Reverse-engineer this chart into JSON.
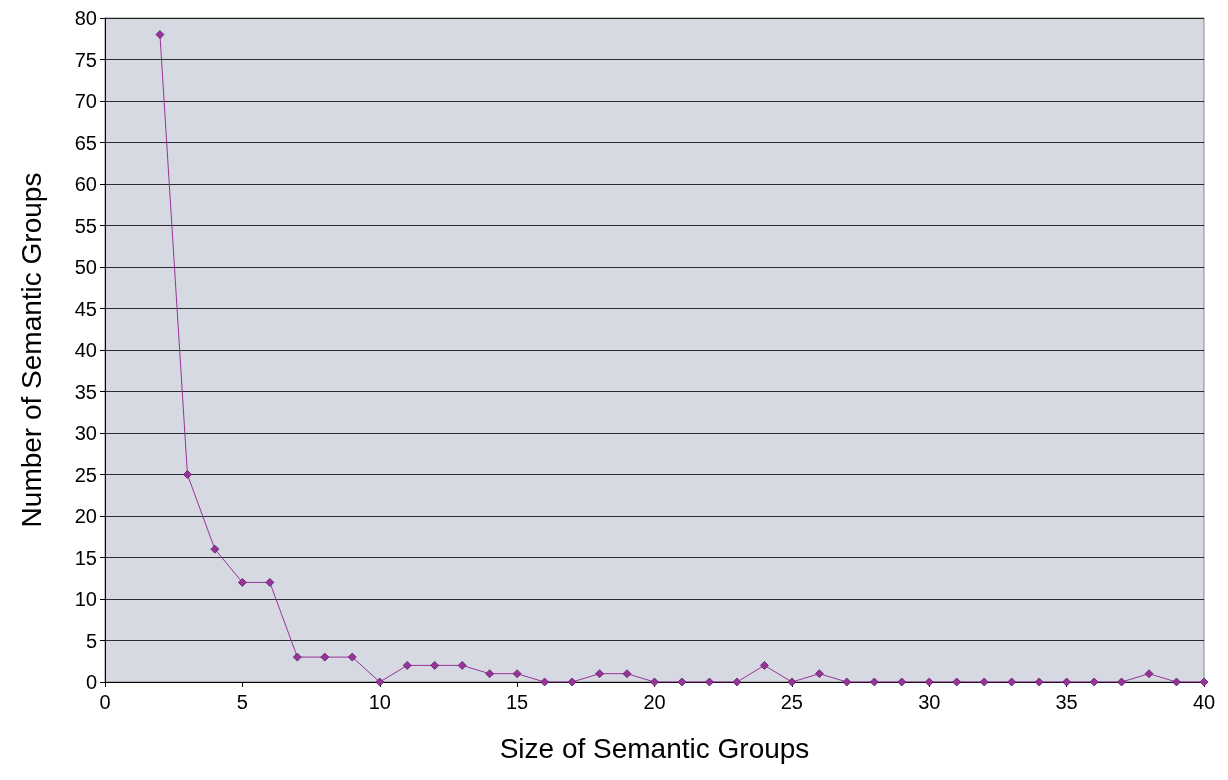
{
  "chart_data": {
    "type": "line",
    "xlabel": "Size of Semantic Groups",
    "ylabel": "Number of Semantic Groups",
    "x": [
      2,
      3,
      4,
      5,
      6,
      7,
      8,
      9,
      10,
      11,
      12,
      13,
      14,
      15,
      16,
      17,
      18,
      19,
      20,
      21,
      22,
      23,
      24,
      25,
      26,
      27,
      28,
      29,
      30,
      31,
      32,
      33,
      34,
      35,
      36,
      37,
      38,
      39,
      40
    ],
    "series": [
      {
        "color": "#993399",
        "values": [
          78,
          25,
          16,
          12,
          12,
          3,
          3,
          3,
          0,
          2,
          2,
          2,
          1,
          1,
          0,
          0,
          1,
          1,
          0,
          0,
          0,
          0,
          2,
          0,
          1,
          0,
          0,
          0,
          0,
          0,
          0,
          0,
          0,
          0,
          0,
          0,
          1,
          0,
          0
        ]
      }
    ],
    "xlim": [
      0,
      40
    ],
    "xticks": [
      0,
      5,
      10,
      15,
      20,
      25,
      30,
      35,
      40
    ],
    "ylim": [
      0,
      80
    ],
    "yticks": [
      0,
      5,
      10,
      15,
      20,
      25,
      30,
      35,
      40,
      45,
      50,
      55,
      60,
      65,
      70,
      75,
      80
    ],
    "grid": "y",
    "marker": "diamond",
    "line_style": "solid"
  }
}
